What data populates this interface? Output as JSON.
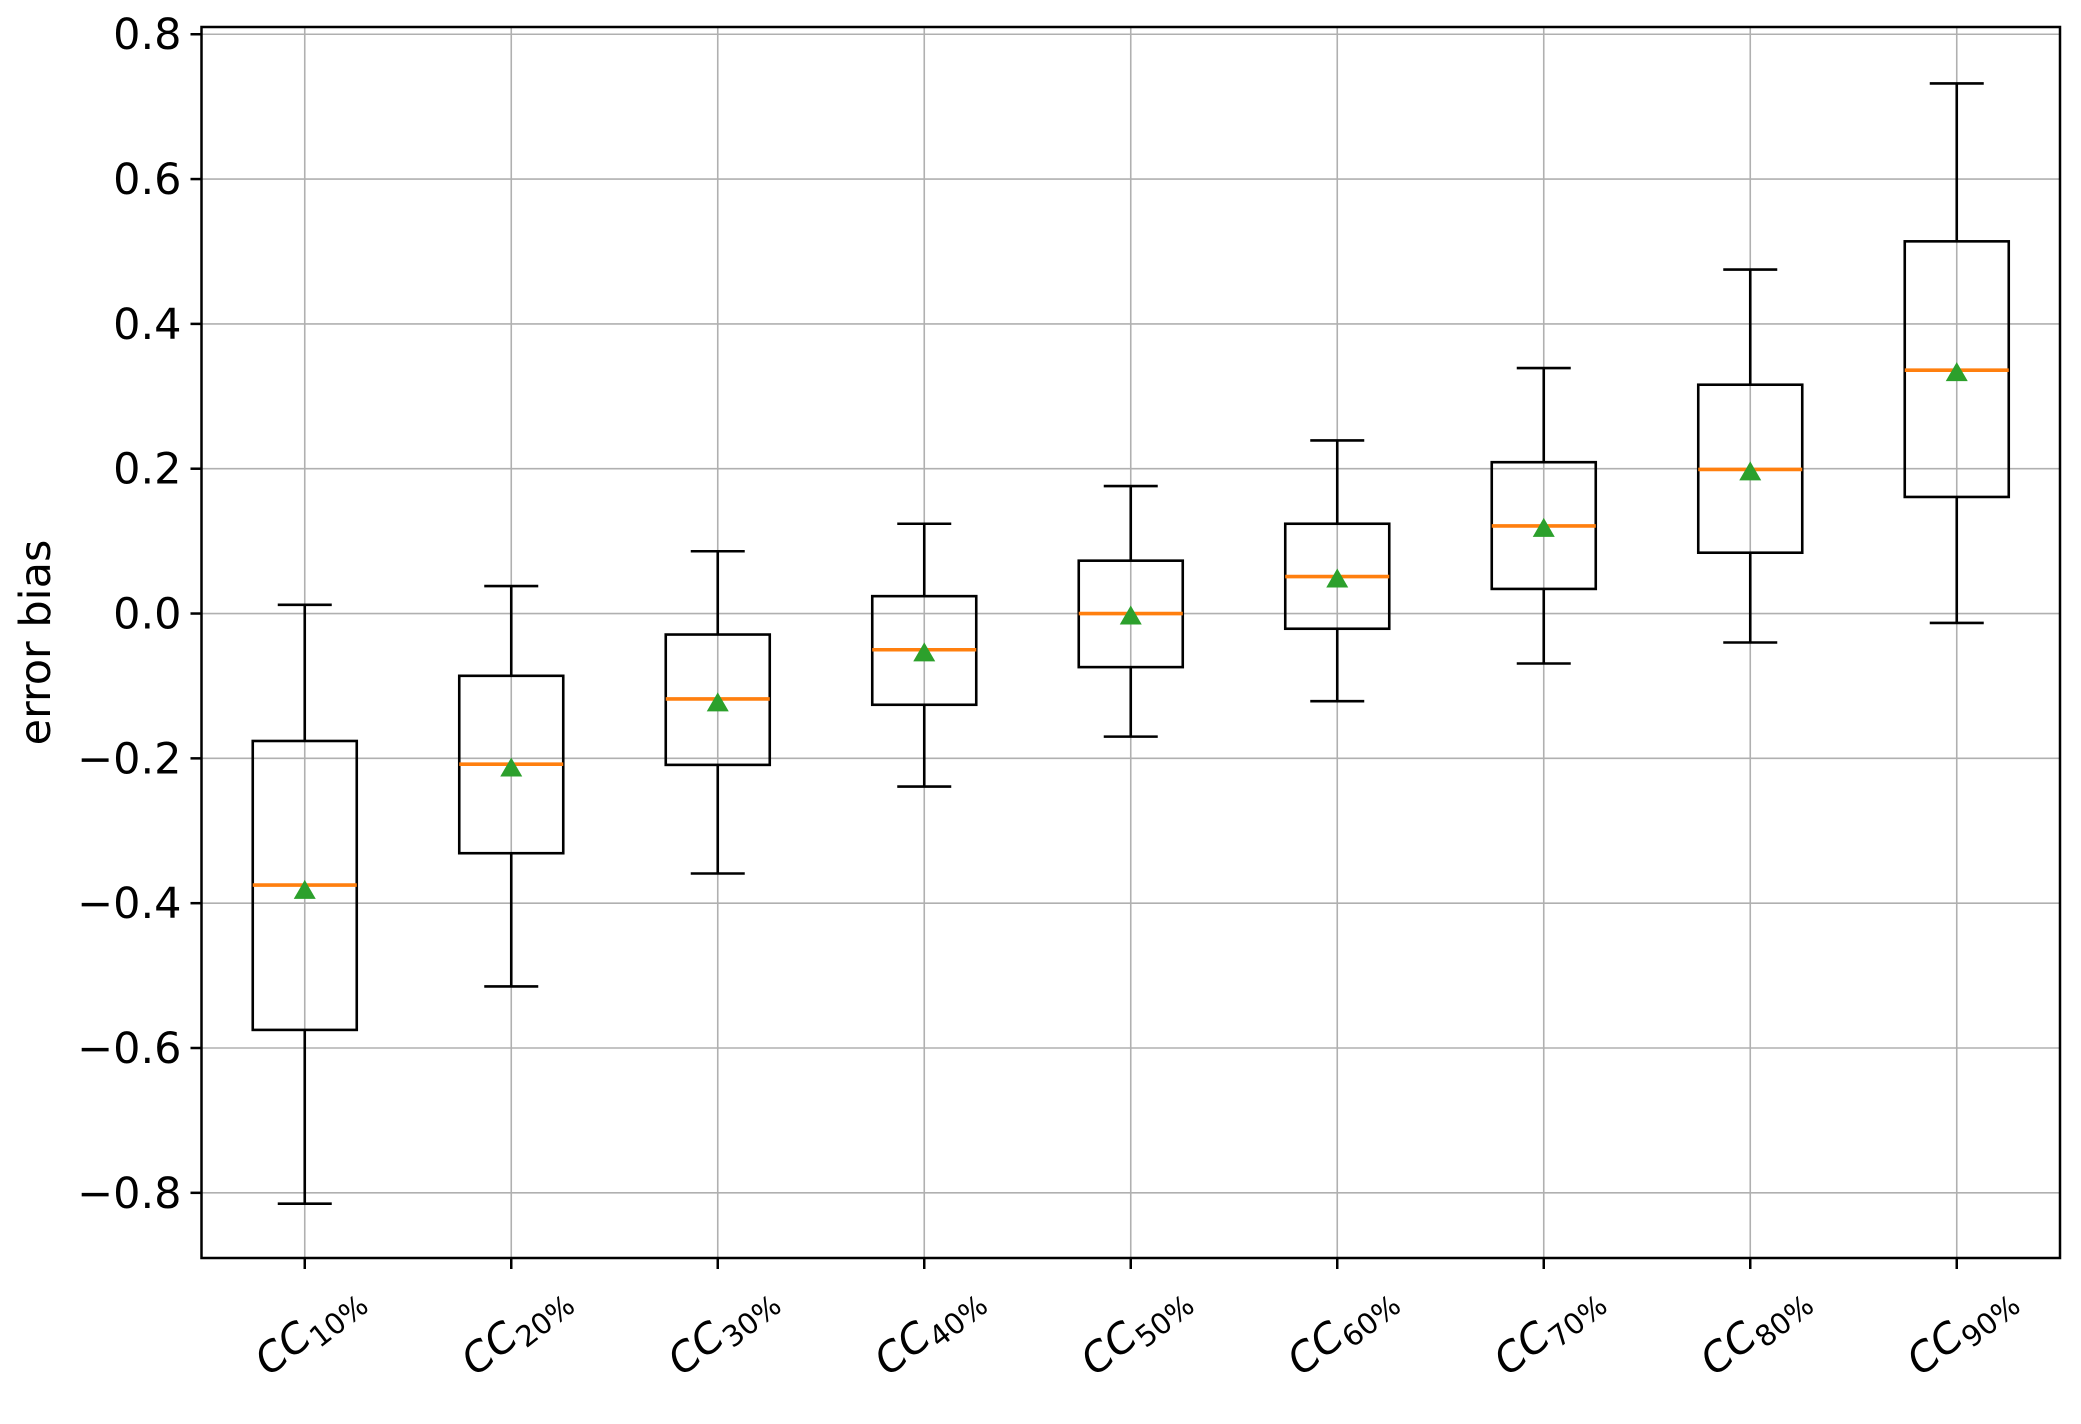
{
  "chart_data": {
    "type": "boxplot",
    "title": "",
    "xlabel": "",
    "ylabel": "error bias",
    "ylim": [
      -0.89,
      0.81
    ],
    "ytick_values": [
      0.8,
      0.6,
      0.4,
      0.2,
      0.0,
      -0.2,
      -0.4,
      -0.6,
      -0.8
    ],
    "grid": true,
    "legend": "none",
    "categories": [
      {
        "base": "CC",
        "sub": "10%"
      },
      {
        "base": "CC",
        "sub": "20%"
      },
      {
        "base": "CC",
        "sub": "30%"
      },
      {
        "base": "CC",
        "sub": "40%"
      },
      {
        "base": "CC",
        "sub": "50%"
      },
      {
        "base": "CC",
        "sub": "60%"
      },
      {
        "base": "CC",
        "sub": "70%"
      },
      {
        "base": "CC",
        "sub": "80%"
      },
      {
        "base": "CC",
        "sub": "90%"
      }
    ],
    "series": [
      {
        "label": "CC 10%",
        "whisker_low": -0.815,
        "q1": -0.575,
        "median": -0.375,
        "q3": -0.176,
        "whisker_high": 0.012,
        "mean": -0.381
      },
      {
        "label": "CC 20%",
        "whisker_low": -0.515,
        "q1": -0.331,
        "median": -0.208,
        "q3": -0.086,
        "whisker_high": 0.038,
        "mean": -0.212
      },
      {
        "label": "CC 30%",
        "whisker_low": -0.359,
        "q1": -0.209,
        "median": -0.118,
        "q3": -0.029,
        "whisker_high": 0.086,
        "mean": -0.122
      },
      {
        "label": "CC 40%",
        "whisker_low": -0.239,
        "q1": -0.126,
        "median": -0.05,
        "q3": 0.024,
        "whisker_high": 0.124,
        "mean": -0.053
      },
      {
        "label": "CC 50%",
        "whisker_low": -0.17,
        "q1": -0.074,
        "median": 0.0,
        "q3": 0.073,
        "whisker_high": 0.176,
        "mean": -0.002
      },
      {
        "label": "CC 60%",
        "whisker_low": -0.121,
        "q1": -0.021,
        "median": 0.051,
        "q3": 0.124,
        "whisker_high": 0.239,
        "mean": 0.049
      },
      {
        "label": "CC 70%",
        "whisker_low": -0.069,
        "q1": 0.034,
        "median": 0.121,
        "q3": 0.209,
        "whisker_high": 0.339,
        "mean": 0.119
      },
      {
        "label": "CC 80%",
        "whisker_low": -0.04,
        "q1": 0.084,
        "median": 0.199,
        "q3": 0.316,
        "whisker_high": 0.475,
        "mean": 0.197
      },
      {
        "label": "CC 90%",
        "whisker_low": -0.013,
        "q1": 0.161,
        "median": 0.336,
        "q3": 0.514,
        "whisker_high": 0.732,
        "mean": 0.334
      }
    ],
    "colors": {
      "box_line": "#000000",
      "median_line": "#ff7f0e",
      "mean_marker": "#2ca02c",
      "grid_line": "#b0b0b0",
      "background": "#ffffff",
      "text": "#000000"
    }
  }
}
